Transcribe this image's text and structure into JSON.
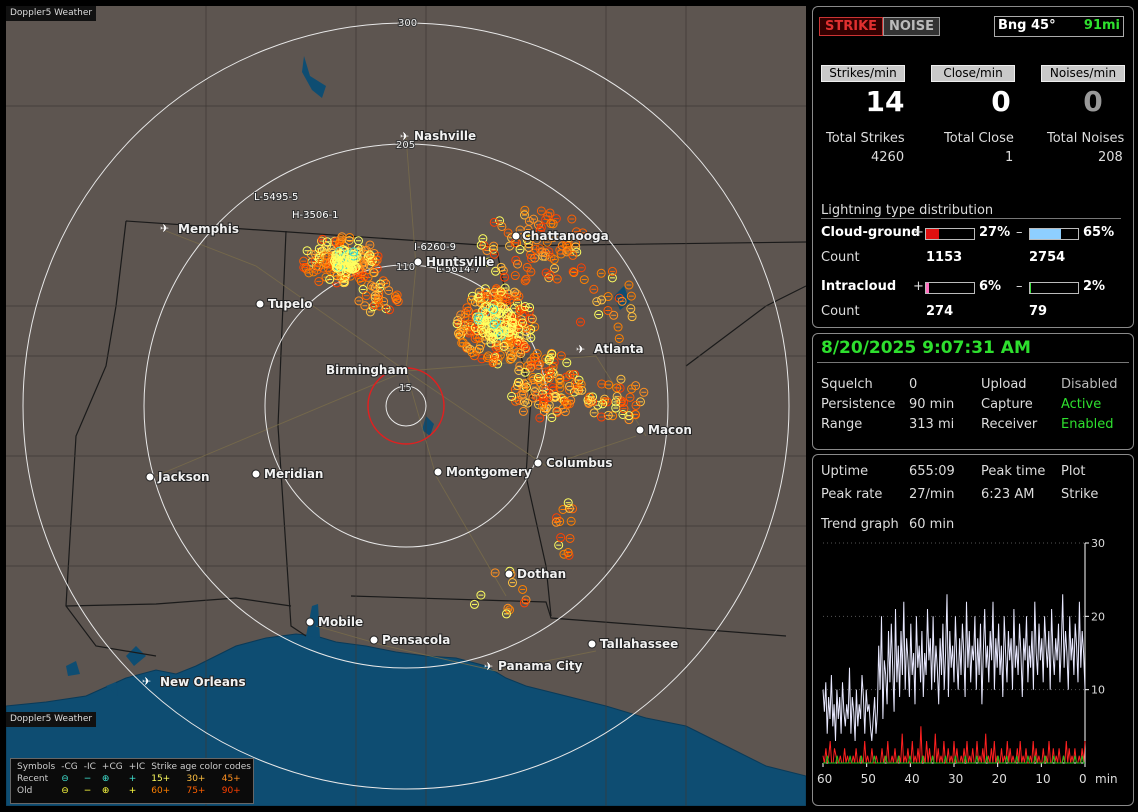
{
  "map": {
    "brand": "Doppler5 Weather",
    "rings": [
      "300",
      "205",
      "110",
      "15"
    ],
    "cities": [
      {
        "name": "Nashville",
        "airport": true
      },
      {
        "name": "Memphis",
        "airport": true
      },
      {
        "name": "Chattanooga",
        "airport": false
      },
      {
        "name": "Huntsville",
        "airport": false
      },
      {
        "name": "Tupelo",
        "airport": false
      },
      {
        "name": "Birmingham",
        "airport": false
      },
      {
        "name": "Atlanta",
        "airport": true
      },
      {
        "name": "Macon",
        "airport": false
      },
      {
        "name": "Jackson",
        "airport": false
      },
      {
        "name": "Meridian",
        "airport": false
      },
      {
        "name": "Montgomery",
        "airport": false
      },
      {
        "name": "Columbus",
        "airport": false
      },
      {
        "name": "Dothan",
        "airport": false
      },
      {
        "name": "Mobile",
        "airport": false
      },
      {
        "name": "Pensacola",
        "airport": false
      },
      {
        "name": "Tallahassee",
        "airport": false
      },
      {
        "name": "Panama City",
        "airport": true
      },
      {
        "name": "New Orleans",
        "airport": true
      }
    ],
    "strike_labels": [
      "L-5495-5",
      "H-3506-1",
      "I-6260-9",
      "L-5614-7"
    ]
  },
  "legend": {
    "title_symbols": "Symbols",
    "headers": [
      "-CG",
      "-IC",
      "+CG",
      "+IC"
    ],
    "age_title": "Strike age color codes",
    "recent": {
      "label": "Recent",
      "ages": [
        "15+",
        "30+",
        "45+"
      ]
    },
    "old": {
      "label": "Old",
      "ages": [
        "60+",
        "75+",
        "90+"
      ]
    },
    "age_colors": [
      "#ffff60",
      "#ffc040",
      "#ff9020",
      "#ff8000",
      "#ff6000",
      "#ff4000"
    ]
  },
  "status": {
    "strike_btn": "STRIKE",
    "noise_btn": "NOISE",
    "bearing_label": "Bng 45°",
    "bearing_distance": "91mi",
    "strikes_per_min_label": "Strikes/min",
    "close_per_min_label": "Close/min",
    "noises_per_min_label": "Noises/min",
    "strikes_per_min": "14",
    "close_per_min": "0",
    "noises_per_min": "0",
    "total_strikes_label": "Total Strikes",
    "total_close_label": "Total Close",
    "total_noises_label": "Total Noises",
    "total_strikes": "4260",
    "total_close": "1",
    "total_noises": "208"
  },
  "distribution": {
    "title": "Lightning type distribution",
    "cg_label": "Cloud-ground",
    "cg_pos_sign": "+",
    "cg_pos_pct": "27%",
    "cg_pos_value": 0.27,
    "cg_neg_sign": "–",
    "cg_neg_pct": "65%",
    "cg_neg_value": 0.65,
    "count_label": "Count",
    "cg_pos_count": "1153",
    "cg_neg_count": "2754",
    "ic_label": "Intracloud",
    "ic_pos_sign": "+",
    "ic_pos_pct": "6%",
    "ic_pos_value": 0.06,
    "ic_neg_sign": "–",
    "ic_neg_pct": "2%",
    "ic_neg_value": 0.02,
    "ic_pos_count": "274",
    "ic_neg_count": "79"
  },
  "settings": {
    "datetime": "8/20/2025 9:07:31 AM",
    "squelch_label": "Squelch",
    "squelch": "0",
    "persistence_label": "Persistence",
    "persistence": "90 min",
    "range_label": "Range",
    "range": "313 mi",
    "upload_label": "Upload",
    "upload": "Disabled",
    "capture_label": "Capture",
    "capture": "Active",
    "receiver_label": "Receiver",
    "receiver": "Enabled"
  },
  "stats": {
    "uptime_label": "Uptime",
    "uptime": "655:09",
    "peak_time_label": "Peak time",
    "plot_label": "Plot",
    "peak_rate_label": "Peak rate",
    "peak_rate": "27/min",
    "peak_time": "6:23 AM",
    "plot": "Strike",
    "trend_label": "Trend graph",
    "trend_window": "60 min"
  },
  "chart_data": {
    "type": "line",
    "xlabel": "min",
    "x_ticks": [
      "60",
      "50",
      "40",
      "30",
      "20",
      "10",
      "0"
    ],
    "y_ticks": [
      "30",
      "20",
      "10"
    ],
    "xlim": [
      60,
      0
    ],
    "ylim": [
      0,
      30
    ],
    "colors": {
      "strikes": "#e8e8ff",
      "close": "#ff2020",
      "noise": "#20c020"
    },
    "series": [
      {
        "key": "strikes",
        "values": [
          10,
          7,
          11,
          4,
          9,
          6,
          12,
          5,
          8,
          3,
          10,
          6,
          9,
          4,
          11,
          7,
          5,
          8,
          6,
          13,
          4,
          9,
          7,
          3,
          10,
          5,
          8,
          6,
          12,
          9,
          4,
          10,
          7,
          8,
          5,
          3,
          6,
          9,
          4,
          7,
          16,
          10,
          20,
          6,
          14,
          12,
          8,
          18,
          11,
          19,
          13,
          7,
          21,
          11,
          16,
          9,
          18,
          12,
          22,
          10,
          17,
          14,
          9,
          19,
          12,
          15,
          8,
          20,
          13,
          16,
          11,
          18,
          9,
          15,
          12,
          21,
          14,
          17,
          10,
          20,
          11,
          16,
          13,
          8,
          17,
          12,
          19,
          10,
          15,
          23,
          9,
          18,
          13,
          16,
          11,
          20,
          14,
          10,
          17,
          12,
          19,
          15,
          9,
          22,
          13,
          18,
          11,
          16,
          14,
          20,
          10,
          17,
          12,
          19,
          8,
          15,
          21,
          13,
          16,
          11,
          18,
          14,
          22,
          10,
          17,
          13,
          19,
          12,
          16,
          9,
          20,
          15,
          11,
          18,
          14,
          17,
          10,
          21,
          13,
          16,
          12,
          19,
          15,
          9,
          17,
          14,
          20,
          11,
          16,
          13,
          18,
          10,
          22,
          15,
          12,
          19,
          14,
          17,
          11,
          20,
          16,
          13,
          18,
          10,
          21,
          15,
          12,
          17,
          14,
          19,
          11,
          16,
          23,
          13,
          18,
          15,
          10,
          20,
          14,
          17,
          12,
          19,
          16,
          11,
          22,
          13,
          18,
          15,
          10
        ]
      },
      {
        "key": "close",
        "values": [
          1,
          0,
          2,
          0,
          1,
          3,
          0,
          0,
          2,
          1,
          0,
          0,
          1,
          0,
          0,
          2,
          0,
          1,
          0,
          0,
          0,
          1,
          0,
          2,
          0,
          0,
          1,
          0,
          0,
          3,
          0,
          1,
          0,
          0,
          2,
          0,
          0,
          1,
          0,
          0,
          0,
          2,
          0,
          1,
          0,
          3,
          0,
          0,
          1,
          0,
          2,
          0,
          0,
          1,
          0,
          4,
          0,
          1,
          0,
          2,
          0,
          0,
          3,
          0,
          1,
          0,
          2,
          0,
          5,
          0,
          1,
          0,
          3,
          0,
          2,
          0,
          1,
          0,
          4,
          0,
          2,
          0,
          1,
          0,
          3,
          0,
          0,
          2,
          0,
          1,
          0,
          3,
          0,
          2,
          0,
          0,
          1,
          0,
          2,
          0,
          3,
          0,
          1,
          0,
          2,
          0,
          0,
          3,
          0,
          1,
          0,
          2,
          0,
          4,
          0,
          1,
          0,
          2,
          0,
          3,
          0,
          1,
          0,
          0,
          2,
          0,
          1,
          0,
          3,
          0,
          2,
          0,
          1,
          0,
          0,
          2,
          0,
          3,
          0,
          1,
          0,
          2,
          0,
          0,
          1,
          0,
          3,
          0,
          2,
          0,
          1,
          0,
          0,
          2,
          0,
          1,
          0,
          3,
          0,
          0,
          2,
          0,
          1,
          0,
          2,
          0,
          0,
          1,
          0,
          3,
          0,
          2,
          0,
          1,
          0,
          2,
          0,
          0,
          1,
          0,
          2,
          0,
          3
        ]
      },
      {
        "key": "noise",
        "values": [
          0,
          0,
          0,
          1,
          0,
          0,
          0,
          0,
          0,
          0,
          1,
          0,
          0,
          0,
          0,
          0,
          0,
          0,
          0,
          1,
          0,
          0,
          0,
          0,
          0,
          0,
          0,
          1,
          0,
          0,
          0,
          0,
          0,
          0,
          0,
          0,
          1,
          0,
          0,
          0,
          0,
          0,
          0,
          0,
          1,
          0,
          0,
          0,
          0,
          0,
          0,
          0,
          0,
          1,
          0,
          0,
          0,
          0,
          0,
          0,
          0,
          1,
          0,
          0,
          0,
          0,
          0,
          0,
          0,
          0,
          1,
          0,
          0,
          0,
          0,
          0,
          0,
          1,
          0,
          0,
          0,
          0,
          0,
          0,
          0,
          0,
          1,
          0,
          0,
          0,
          0,
          0,
          0,
          1,
          0,
          0,
          0,
          0,
          0,
          0,
          1,
          0,
          0,
          0,
          0,
          0,
          0,
          0,
          1,
          0,
          0,
          0,
          0,
          0,
          0,
          1,
          0,
          0,
          0,
          0,
          0,
          0,
          0,
          1,
          0,
          0,
          0,
          0,
          0,
          1,
          0,
          0,
          0,
          0,
          0,
          0,
          1,
          0,
          0,
          0,
          0,
          0,
          0,
          0,
          1,
          0,
          0,
          0,
          0,
          1,
          0,
          0,
          0,
          0,
          0,
          0,
          1,
          0,
          0,
          0,
          0,
          0,
          1,
          0,
          0,
          0,
          0,
          0,
          0,
          1,
          0,
          0,
          0,
          0,
          0,
          0,
          0,
          1,
          0,
          0,
          0,
          0,
          1,
          0,
          0
        ]
      }
    ]
  }
}
